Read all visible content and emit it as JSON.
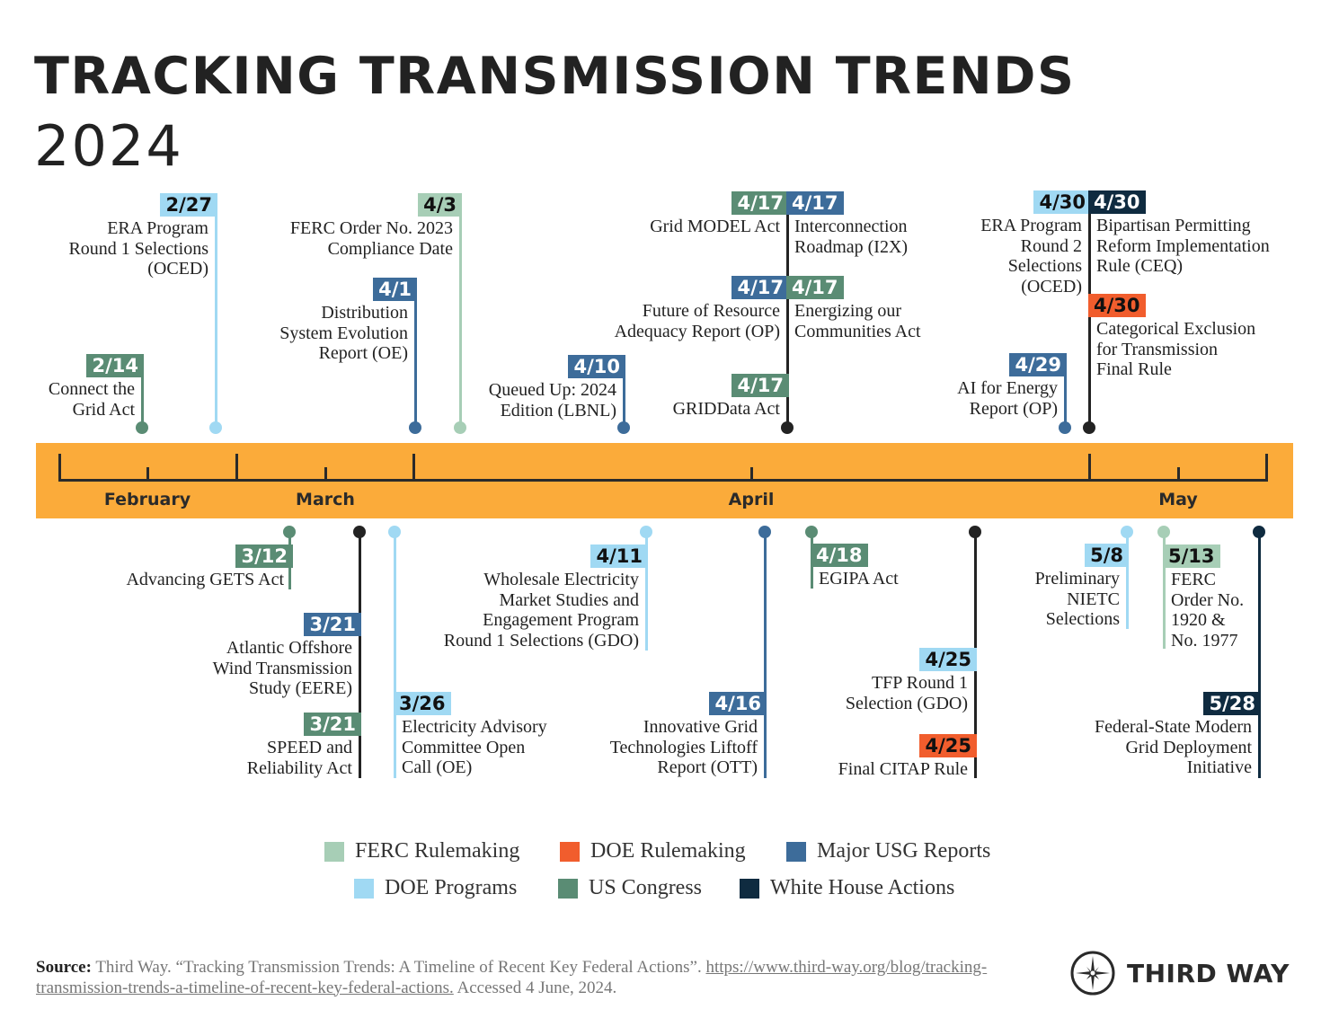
{
  "title": "TRACKING TRANSMISSION TRENDS",
  "year": "2024",
  "months": [
    "February",
    "March",
    "April",
    "May"
  ],
  "categories": {
    "ferc": {
      "label": "FERC Rulemaking",
      "color": "#a7ceb6"
    },
    "doe_rule": {
      "label": "DOE Rulemaking",
      "color": "#f15d2d"
    },
    "usg": {
      "label": "Major USG Reports",
      "color": "#3d6c9a"
    },
    "doe_prog": {
      "label": "DOE Programs",
      "color": "#a0d9f3"
    },
    "congress": {
      "label": "US Congress",
      "color": "#5a8c74"
    },
    "whitehouse": {
      "label": "White House Actions",
      "color": "#0f2b40"
    }
  },
  "timeline_color": "#fbab3a",
  "events": [
    {
      "date": "2/14",
      "category": "congress",
      "lines": [
        "Connect the",
        "Grid Act"
      ]
    },
    {
      "date": "2/27",
      "category": "doe_prog",
      "lines": [
        "ERA Program",
        "Round 1 Selections",
        "(OCED)"
      ]
    },
    {
      "date": "4/1",
      "category": "usg",
      "lines": [
        "Distribution",
        "System Evolution",
        "Report (OE)"
      ]
    },
    {
      "date": "4/3",
      "category": "ferc",
      "lines": [
        "FERC Order No. 2023",
        "Compliance Date"
      ]
    },
    {
      "date": "4/10",
      "category": "usg",
      "lines": [
        "Queued Up: 2024",
        "Edition (LBNL)"
      ]
    },
    {
      "date": "4/17",
      "category": "congress",
      "lines": [
        "Grid MODEL Act"
      ]
    },
    {
      "date": "4/17",
      "category": "usg",
      "lines": [
        "Interconnection",
        "Roadmap (I2X)"
      ]
    },
    {
      "date": "4/17",
      "category": "usg",
      "lines": [
        "Future of Resource",
        "Adequacy Report (OP)"
      ]
    },
    {
      "date": "4/17",
      "category": "congress",
      "lines": [
        "Energizing our",
        "Communities Act"
      ]
    },
    {
      "date": "4/17",
      "category": "congress",
      "lines": [
        "GRIDData Act"
      ]
    },
    {
      "date": "4/29",
      "category": "usg",
      "lines": [
        "AI for Energy",
        "Report (OP)"
      ]
    },
    {
      "date": "4/30",
      "category": "doe_prog",
      "lines": [
        "ERA Program",
        "Round 2",
        "Selections",
        "(OCED)"
      ]
    },
    {
      "date": "4/30",
      "category": "whitehouse",
      "lines": [
        "Bipartisan Permitting",
        "Reform Implementation",
        "Rule (CEQ)"
      ]
    },
    {
      "date": "4/30",
      "category": "doe_rule",
      "lines": [
        "Categorical Exclusion",
        "for Transmission",
        "Final Rule"
      ]
    },
    {
      "date": "3/12",
      "category": "congress",
      "lines": [
        "Advancing GETS Act"
      ]
    },
    {
      "date": "3/21",
      "category": "usg",
      "lines": [
        "Atlantic Offshore",
        "Wind Transmission",
        "Study (EERE)"
      ]
    },
    {
      "date": "3/21",
      "category": "congress",
      "lines": [
        "SPEED and",
        "Reliability Act"
      ]
    },
    {
      "date": "3/26",
      "category": "doe_prog",
      "lines": [
        "Electricity Advisory",
        "Committee Open",
        "Call (OE)"
      ]
    },
    {
      "date": "4/11",
      "category": "doe_prog",
      "lines": [
        "Wholesale Electricity",
        "Market Studies and",
        "Engagement Program",
        "Round 1 Selections (GDO)"
      ]
    },
    {
      "date": "4/16",
      "category": "usg",
      "lines": [
        "Innovative Grid",
        "Technologies Liftoff",
        "Report (OTT)"
      ]
    },
    {
      "date": "4/18",
      "category": "congress",
      "lines": [
        "EGIPA Act"
      ]
    },
    {
      "date": "4/25",
      "category": "doe_prog",
      "lines": [
        "TFP Round 1",
        "Selection (GDO)"
      ]
    },
    {
      "date": "4/25",
      "category": "doe_rule",
      "lines": [
        "Final CITAP Rule"
      ]
    },
    {
      "date": "5/8",
      "category": "doe_prog",
      "lines": [
        "Preliminary",
        "NIETC",
        "Selections"
      ]
    },
    {
      "date": "5/13",
      "category": "ferc",
      "lines": [
        "FERC",
        "Order No.",
        "1920 &",
        "No. 1977"
      ]
    },
    {
      "date": "5/28",
      "category": "whitehouse",
      "lines": [
        "Federal-State Modern",
        "Grid Deployment",
        "Initiative"
      ]
    }
  ],
  "legend_rows": [
    [
      "ferc",
      "doe_rule",
      "usg"
    ],
    [
      "doe_prog",
      "congress",
      "whitehouse"
    ]
  ],
  "source": {
    "label": "Source:",
    "text": " Third Way. “Tracking Transmission Trends: A Timeline of Recent Key Federal Actions”. ",
    "link": "https://www.third-way.org/blog/tracking-transmission-trends-a-timeline-of-recent-key-federal-actions.",
    "accessed": " Accessed 4 June, 2024."
  },
  "logo": {
    "text": "THIRD WAY",
    "icon": "compass-icon"
  }
}
